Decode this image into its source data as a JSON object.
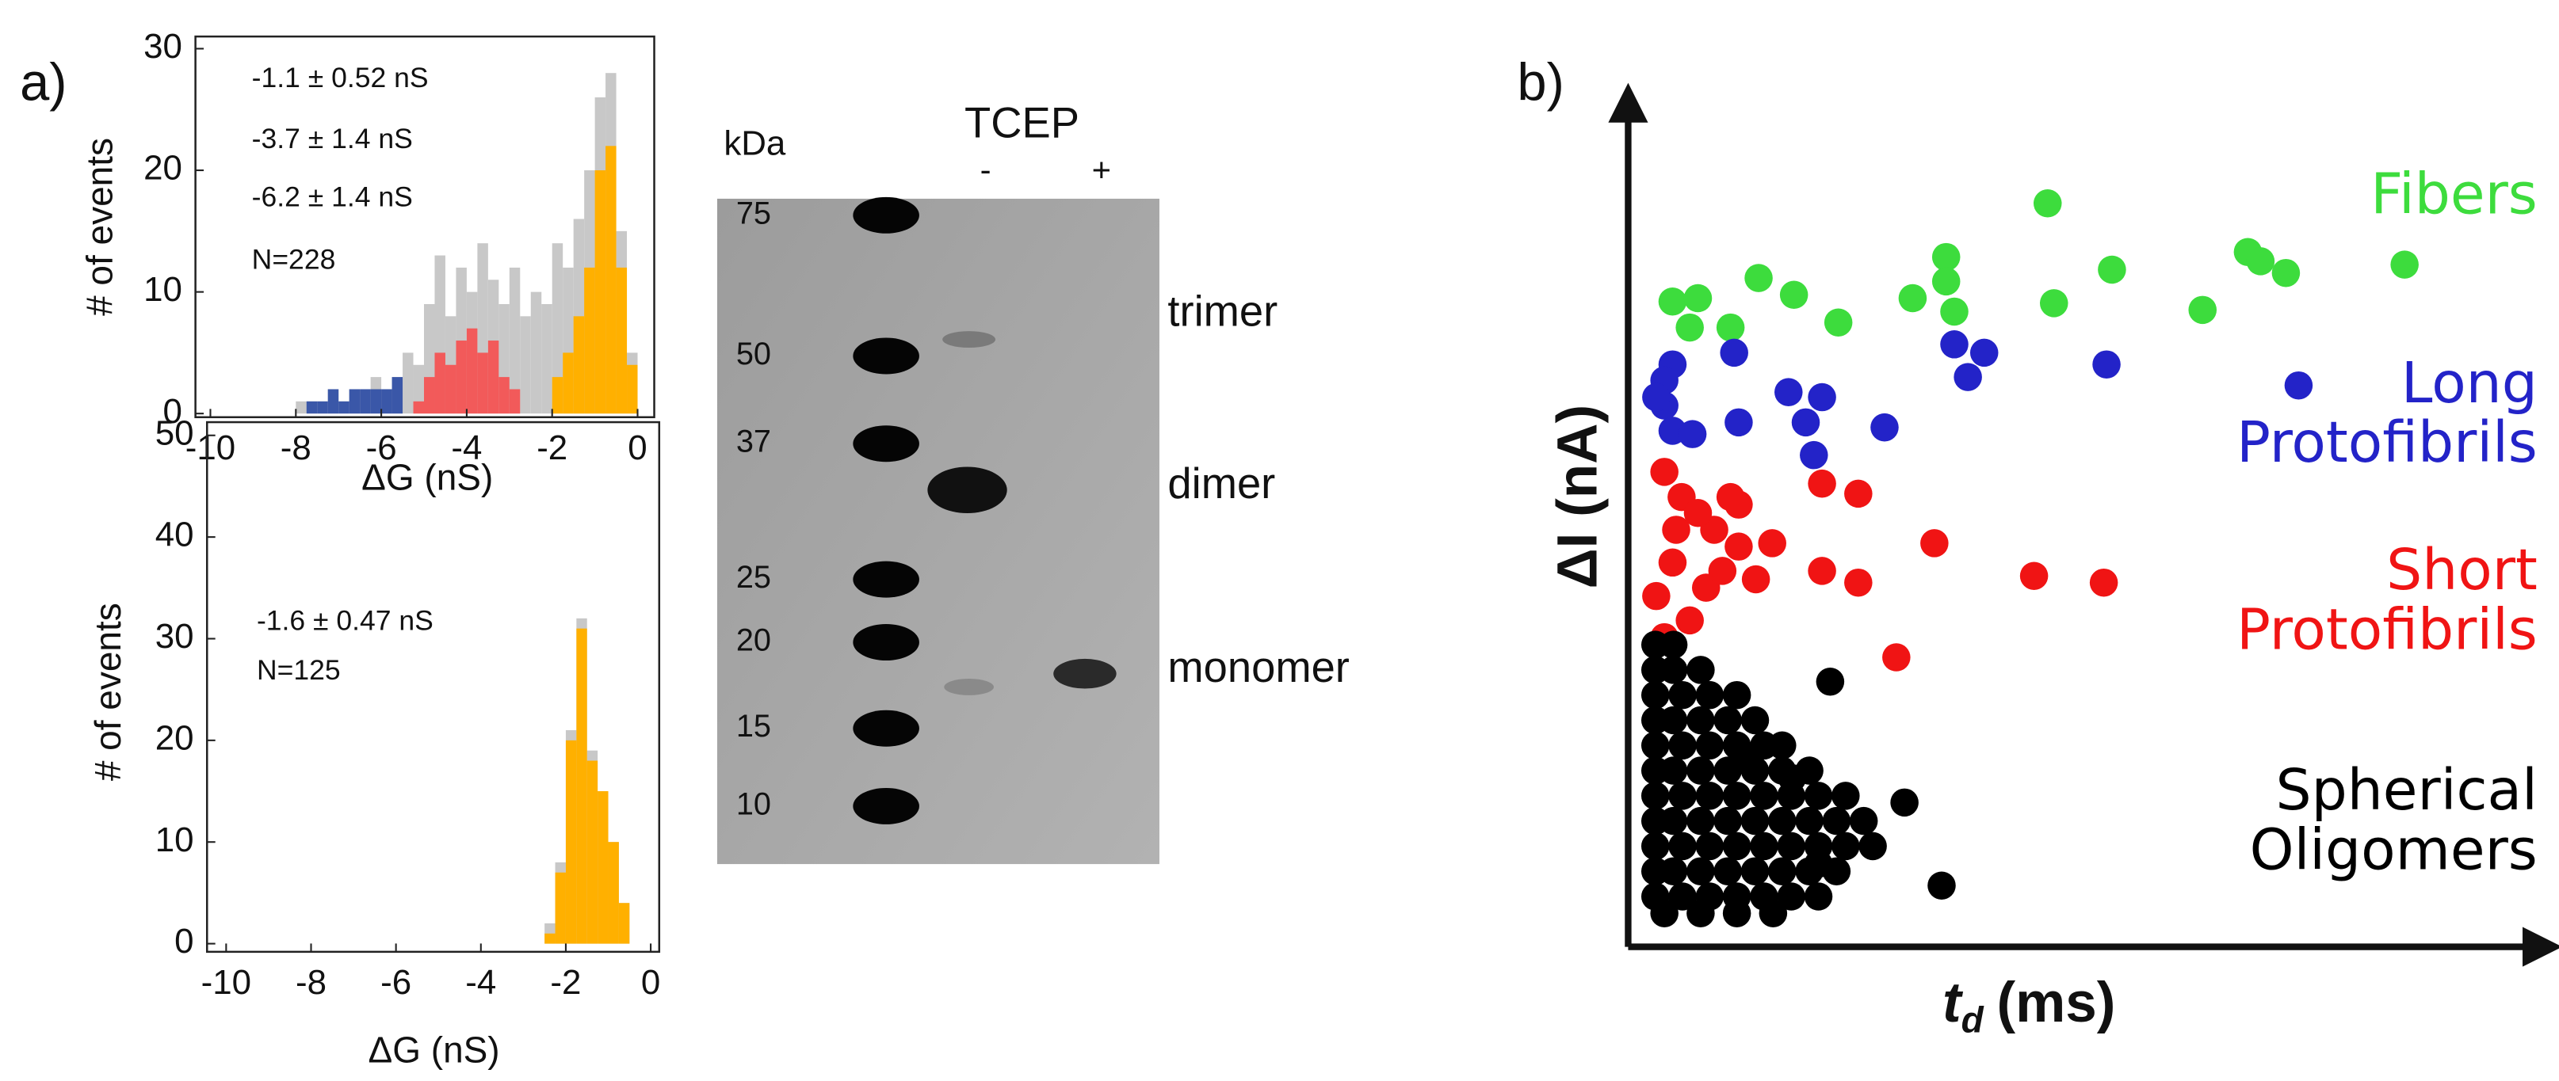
{
  "chart_data": [
    {
      "type": "histogram",
      "panel_label": "a)",
      "x_label": "ΔG  (nS)",
      "y_label": "# of events",
      "bins": [
        -8,
        -7.75,
        -7.5,
        -7.25,
        -7,
        -6.75,
        -6.5,
        -6.25,
        -6,
        -5.75,
        -5.5,
        -5.25,
        -5,
        -4.75,
        -4.5,
        -4.25,
        -4,
        -3.75,
        -3.5,
        -3.25,
        -3,
        -2.75,
        -2.5,
        -2.25,
        -2,
        -1.75,
        -1.5,
        -1.25,
        -1,
        -0.75,
        -0.5,
        -0.25,
        0
      ],
      "series": [
        {
          "color": "#c8c8c8",
          "values": [
            1,
            1,
            1,
            2,
            1,
            2,
            2,
            3,
            2,
            3,
            5,
            4,
            9,
            13,
            8,
            12,
            10,
            14,
            11,
            9,
            12,
            8,
            10,
            9,
            14,
            12,
            16,
            20,
            26,
            28,
            15,
            5
          ]
        },
        {
          "color": "#3a57a8",
          "values": [
            0,
            1,
            1,
            2,
            1,
            2,
            2,
            2,
            2,
            3,
            0,
            0,
            0,
            0,
            0,
            0,
            0,
            0,
            0,
            0,
            0,
            0,
            0,
            0,
            0,
            0,
            0,
            0,
            0,
            0,
            0,
            0
          ]
        },
        {
          "color": "#f25a5a",
          "values": [
            0,
            0,
            0,
            0,
            0,
            0,
            0,
            0,
            0,
            0,
            0,
            1,
            3,
            5,
            4,
            6,
            7,
            5,
            6,
            3,
            2,
            0,
            0,
            0,
            0,
            0,
            0,
            0,
            0,
            0,
            0,
            0
          ]
        },
        {
          "color": "#ffb000",
          "values": [
            0,
            0,
            0,
            0,
            0,
            0,
            0,
            0,
            0,
            0,
            0,
            0,
            0,
            0,
            0,
            0,
            0,
            0,
            0,
            0,
            0,
            0,
            0,
            0,
            3,
            5,
            8,
            12,
            20,
            22,
            12,
            4
          ]
        }
      ],
      "annotations": [
        "-1.1 ± 0.52 nS",
        "-3.7 ± 1.4 nS",
        "-6.2 ± 1.4 nS",
        "N=228"
      ],
      "xlim": [
        -10.35,
        0.39
      ],
      "xticks": [
        -10,
        -8,
        -6,
        -4,
        -2,
        0
      ],
      "ylim": [
        -0.3,
        31
      ],
      "yticks": [
        0,
        10,
        20,
        30
      ]
    },
    {
      "type": "histogram",
      "x_label": "ΔG  (nS)",
      "y_label": "# of events",
      "bins": [
        -2.5,
        -2.25,
        -2,
        -1.75,
        -1.5,
        -1.25,
        -1,
        -0.75,
        -0.5
      ],
      "series": [
        {
          "color": "#c8c8c8",
          "values": [
            2,
            8,
            21,
            32,
            19,
            15,
            10,
            4
          ]
        },
        {
          "color": "#ffb000",
          "values": [
            1,
            7,
            20,
            31,
            18,
            15,
            10,
            4
          ]
        }
      ],
      "annotations": [
        "-1.6 ± 0.47 nS",
        "N=125"
      ],
      "xlim": [
        -10.45,
        0.2
      ],
      "xticks": [
        -10,
        -8,
        -6,
        -4,
        -2,
        0
      ],
      "ylim": [
        -0.8,
        51.3
      ],
      "yticks": [
        0,
        10,
        20,
        30,
        40,
        50
      ]
    },
    {
      "type": "scatter",
      "panel_label": "b)",
      "y_label": "ΔI (nA)",
      "x_label": "t",
      "x_label_sub": "d",
      "x_label_unit": "(ms)",
      "xlim": [
        0,
        100
      ],
      "ylim": [
        0,
        100
      ],
      "series": [
        {
          "name": "Fibers",
          "color": "#3ddc3d",
          "x": [
            46.3,
            35.1,
            68.4,
            69.8,
            72.6,
            85.7,
            53.4,
            35.1,
            14.4,
            18.3,
            4.9,
            7.7,
            31.4,
            36.0,
            47.0,
            63.4,
            23.2,
            11.3,
            6.8
          ],
          "y": [
            88.6,
            82.2,
            82.8,
            81.7,
            80.3,
            81.3,
            80.7,
            79.3,
            79.7,
            77.7,
            76.9,
            77.3,
            77.3,
            75.7,
            76.7,
            75.9,
            74.4,
            73.8,
            73.8
          ]
        },
        {
          "name": "Long Protofibrils",
          "color": "#2323c8",
          "x": [
            4.9,
            4.0,
            11.7,
            36.0,
            39.3,
            37.5,
            52.8,
            74.0,
            4.0,
            4.9,
            7.1,
            17.7,
            21.4,
            19.6,
            12.2,
            28.3,
            20.5,
            3.1
          ],
          "y": [
            69.4,
            67.5,
            70.8,
            71.8,
            70.8,
            67.9,
            69.4,
            66.9,
            64.5,
            61.5,
            61.1,
            66.1,
            65.5,
            62.5,
            62.5,
            61.9,
            58.6,
            65.5
          ]
        },
        {
          "name": "Short Protofibrils",
          "color": "#f01414",
          "x": [
            21.4,
            25.4,
            11.3,
            12.2,
            15.9,
            21.4,
            25.4,
            33.8,
            44.8,
            52.5,
            29.6,
            14.1,
            9.5,
            5.9,
            4.0,
            4.9,
            3.1,
            6.8,
            4.0,
            8.6,
            10.4,
            5.3,
            7.7,
            12.2
          ],
          "y": [
            55.2,
            54.0,
            53.6,
            47.7,
            48.1,
            44.8,
            43.4,
            48.1,
            44.2,
            43.4,
            34.5,
            43.8,
            49.7,
            53.6,
            56.6,
            45.8,
            41.8,
            38.9,
            36.9,
            42.8,
            44.8,
            49.7,
            51.7,
            52.7
          ]
        },
        {
          "name": "Spherical Oligomers",
          "color": "#000000",
          "x": [
            3,
            5,
            3,
            5,
            8,
            3,
            6,
            9,
            12,
            3,
            5,
            8,
            11,
            14,
            3,
            6,
            9,
            12,
            15,
            17,
            3,
            5,
            8,
            11,
            14,
            17,
            20,
            3,
            6,
            9,
            12,
            15,
            18,
            21,
            24,
            3,
            5,
            8,
            11,
            14,
            17,
            20,
            23,
            26,
            3,
            6,
            9,
            12,
            15,
            18,
            21,
            24,
            27,
            3,
            5,
            8,
            11,
            14,
            17,
            20,
            23,
            3,
            6,
            9,
            12,
            15,
            18,
            21,
            4,
            8,
            12,
            16,
            22.3,
            13.2,
            18.1,
            30.5,
            34.6,
            21.0
          ],
          "y": [
            36,
            36,
            33,
            33,
            33,
            30,
            30,
            30,
            30,
            27,
            27,
            27,
            27,
            27,
            24,
            24,
            24,
            24,
            24,
            24,
            21,
            21,
            21,
            21,
            21,
            21,
            21,
            18,
            18,
            18,
            18,
            18,
            18,
            18,
            18,
            15,
            15,
            15,
            15,
            15,
            15,
            15,
            15,
            15,
            12,
            12,
            12,
            12,
            12,
            12,
            12,
            12,
            12,
            9,
            9,
            9,
            9,
            9,
            9,
            9,
            9,
            6,
            6,
            6,
            6,
            6,
            6,
            6,
            4,
            4,
            4,
            4,
            31.6,
            22.5,
            20.1,
            17.2,
            7.3,
            9.9
          ]
        }
      ]
    }
  ],
  "gel": {
    "unit": "kDa",
    "reagent": "TCEP",
    "lanes": [
      "-",
      "+"
    ],
    "markers": [
      75,
      50,
      37,
      25,
      20,
      15,
      10
    ],
    "bands": [
      "trimer",
      "dimer",
      "monomer"
    ]
  }
}
